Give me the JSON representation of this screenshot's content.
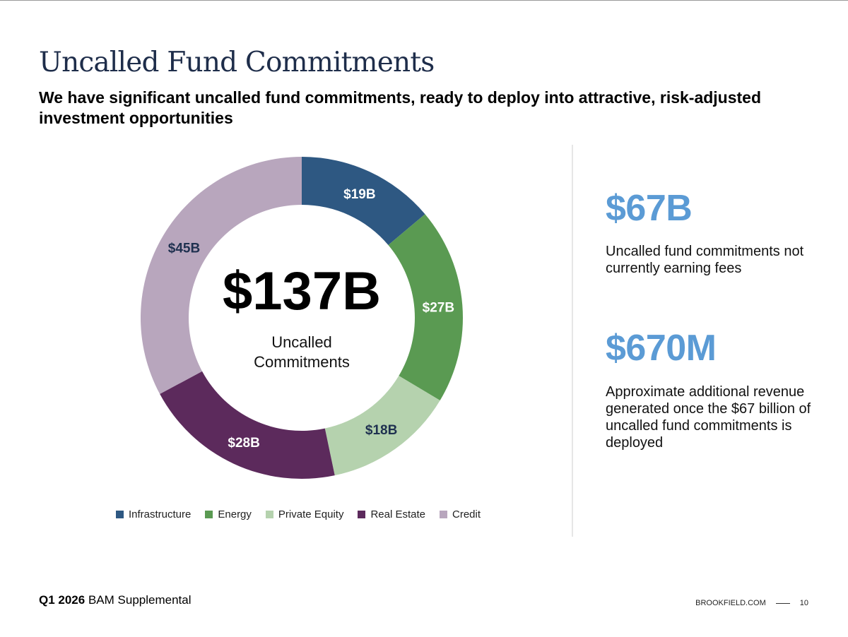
{
  "title": "Uncalled Fund Commitments",
  "subtitle": "We have significant uncalled fund commitments, ready to deploy into attractive, risk-adjusted investment opportunities",
  "chart_data": {
    "type": "pie",
    "variant": "donut",
    "title": "",
    "center_value": "$137B",
    "center_label": "Uncalled Commitments",
    "legend_position": "bottom",
    "categories": [
      "Infrastructure",
      "Energy",
      "Private Equity",
      "Real Estate",
      "Credit"
    ],
    "values": [
      19,
      27,
      18,
      28,
      45
    ],
    "unit": "$B",
    "data_labels": [
      "$19B",
      "$27B",
      "$18B",
      "$28B",
      "$45B"
    ],
    "colors": [
      "#2e5882",
      "#5a9a52",
      "#b5d2ae",
      "#5c2a5c",
      "#b8a6bd"
    ],
    "label_colors": [
      "#ffffff",
      "#ffffff",
      "#1f3150",
      "#ffffff",
      "#1f3150"
    ]
  },
  "kpis": [
    {
      "value": "$67B",
      "description": "Uncalled fund commitments not currently earning fees"
    },
    {
      "value": "$670M",
      "description": "Approximate additional revenue generated once the $67 billion of uncalled fund commitments is deployed"
    }
  ],
  "footer": {
    "period": "Q1 2026",
    "report": "BAM Supplemental",
    "website": "BROOKFIELD.COM",
    "page_number": "10"
  }
}
